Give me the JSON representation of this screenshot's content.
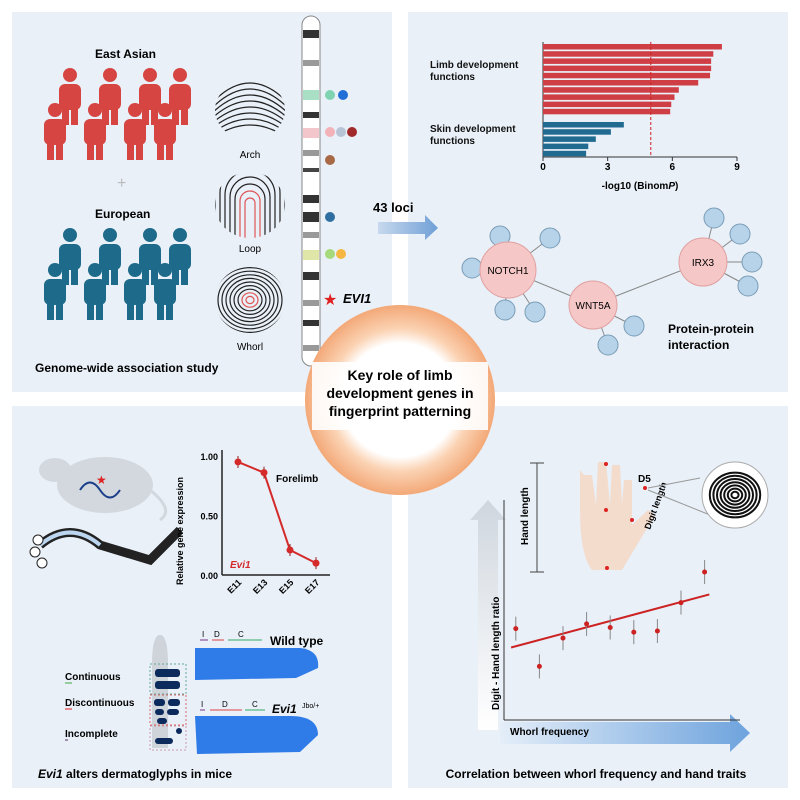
{
  "gwas": {
    "group1": "East Asian",
    "group2": "European",
    "patterns": [
      "Arch",
      "Loop",
      "Whorl"
    ],
    "gene": "EVI1",
    "title": "Genome-wide association study",
    "color_east_asian": "#d64541",
    "color_european": "#1d6a8a"
  },
  "arrow_label": "43 loci",
  "enrichment_chart": {
    "type": "bar",
    "group_labels": [
      "Limb development functions",
      "Skin development functions"
    ],
    "limb_values": [
      8.3,
      7.9,
      7.8,
      7.8,
      7.75,
      7.2,
      6.3,
      6.1,
      5.95,
      5.9
    ],
    "skin_values": [
      3.75,
      3.15,
      2.45,
      2.1,
      2.0
    ],
    "threshold": 5.0,
    "xlim": [
      0,
      9
    ],
    "xticks": [
      "0",
      "3",
      "6",
      "9"
    ],
    "xlabel_prefix": "-log10 (Binom",
    "xlabel_italic": "P",
    "xlabel_suffix": ")",
    "colors": {
      "limb": "#cf3e45",
      "skin": "#216b91"
    }
  },
  "ppi": {
    "nodes": [
      "NOTCH1",
      "WNT5A",
      "IRX3"
    ],
    "title_line1": "Protein-protein",
    "title_line2": "interaction"
  },
  "center": {
    "line1": "Key role of limb",
    "line2": "development genes in",
    "line3": "fingerprint patterning"
  },
  "expression_chart": {
    "type": "line",
    "categories": [
      "E11",
      "E13",
      "E15",
      "E17"
    ],
    "values": [
      0.95,
      0.86,
      0.21,
      0.1
    ],
    "ylim": [
      0,
      1
    ],
    "yticks": [
      "0.00",
      "0.50",
      "1.00"
    ],
    "ylabel": "Relative gene expression",
    "series_label": "Forelimb",
    "gene_label": "Evi1",
    "color": "#d42a2a"
  },
  "mouse": {
    "ridge_types": [
      "Continuous",
      "Discontinuous",
      "Incomplete"
    ],
    "segment_labels": [
      "I",
      "D",
      "C"
    ],
    "wild_type": "Wild type",
    "mutant": "Evi1",
    "mutant_sup": "Jbo/+",
    "title_italic": "Evi1",
    "title_rest": " alters dermatoglyphs in mice"
  },
  "correlation": {
    "hand_length": "Hand length",
    "digit_length": "Digit length",
    "digit_label": "D5",
    "ylabel": "Digit - Hand length ratio",
    "xlabel": "Whorl frequency",
    "title": "Correlation between whorl frequency and hand traits",
    "points_relative": [
      [
        0.05,
        0.52
      ],
      [
        0.15,
        0.2
      ],
      [
        0.25,
        0.44
      ],
      [
        0.35,
        0.56
      ],
      [
        0.45,
        0.53
      ],
      [
        0.55,
        0.49
      ],
      [
        0.65,
        0.5
      ],
      [
        0.75,
        0.74
      ],
      [
        0.85,
        1.0
      ]
    ],
    "trend_relative": [
      [
        0.03,
        0.36
      ],
      [
        0.87,
        0.81
      ]
    ]
  }
}
